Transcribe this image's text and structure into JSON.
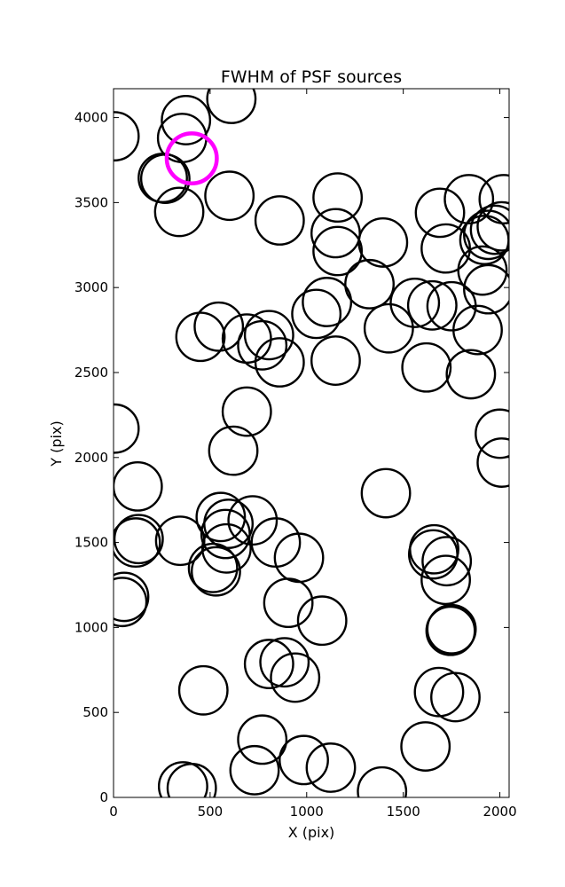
{
  "chart_data": {
    "type": "scatter",
    "title": "FWHM of PSF sources",
    "xlabel": "X (pix)",
    "ylabel": "Y (pix)",
    "xlim": [
      0,
      2048
    ],
    "ylim": [
      0,
      4170
    ],
    "xticks": [
      "0",
      "500",
      "1000",
      "1500",
      "2000"
    ],
    "yticks": [
      "0",
      "500",
      "1000",
      "1500",
      "2000",
      "2500",
      "3000",
      "3500",
      "4000"
    ],
    "grid": false,
    "legend": "none",
    "marker": "open circle",
    "marker_radius_data_x": 125,
    "colors": {
      "sources": "#000000",
      "highlight": "#ff00ff"
    },
    "highlight": {
      "x": 405,
      "y": 3760
    },
    "series": [
      {
        "points": [
          [
            5,
            3890
          ],
          [
            375,
            3985
          ],
          [
            610,
            4110
          ],
          [
            355,
            3880
          ],
          [
            255,
            3645
          ],
          [
            268,
            3640
          ],
          [
            340,
            3445
          ],
          [
            600,
            3540
          ],
          [
            860,
            3395
          ],
          [
            1160,
            3530
          ],
          [
            1150,
            3320
          ],
          [
            1160,
            3215
          ],
          [
            1395,
            3265
          ],
          [
            1325,
            3020
          ],
          [
            1105,
            2915
          ],
          [
            1050,
            2845
          ],
          [
            1425,
            2760
          ],
          [
            1560,
            2910
          ],
          [
            1650,
            2895
          ],
          [
            1750,
            2890
          ],
          [
            1885,
            2750
          ],
          [
            1620,
            2530
          ],
          [
            1850,
            2490
          ],
          [
            1690,
            3440
          ],
          [
            1720,
            3230
          ],
          [
            1840,
            3520
          ],
          [
            1920,
            3280
          ],
          [
            1940,
            3310
          ],
          [
            1975,
            3340
          ],
          [
            2010,
            3360
          ],
          [
            2020,
            3520
          ],
          [
            1910,
            3100
          ],
          [
            1940,
            2990
          ],
          [
            2000,
            2140
          ],
          [
            2010,
            1970
          ],
          [
            5,
            2170
          ],
          [
            125,
            1830
          ],
          [
            690,
            2270
          ],
          [
            620,
            2040
          ],
          [
            450,
            2710
          ],
          [
            545,
            2770
          ],
          [
            690,
            2700
          ],
          [
            805,
            2720
          ],
          [
            770,
            2660
          ],
          [
            860,
            2560
          ],
          [
            1150,
            2570
          ],
          [
            1410,
            1790
          ],
          [
            130,
            1520
          ],
          [
            115,
            1500
          ],
          [
            345,
            1510
          ],
          [
            555,
            1650
          ],
          [
            595,
            1610
          ],
          [
            720,
            1630
          ],
          [
            580,
            1550
          ],
          [
            585,
            1465
          ],
          [
            515,
            1350
          ],
          [
            530,
            1330
          ],
          [
            840,
            1500
          ],
          [
            960,
            1410
          ],
          [
            55,
            1180
          ],
          [
            45,
            1150
          ],
          [
            905,
            1145
          ],
          [
            1080,
            1040
          ],
          [
            1660,
            1460
          ],
          [
            1655,
            1430
          ],
          [
            1725,
            1390
          ],
          [
            1720,
            1280
          ],
          [
            1750,
            990
          ],
          [
            1745,
            980
          ],
          [
            465,
            630
          ],
          [
            805,
            785
          ],
          [
            885,
            795
          ],
          [
            940,
            705
          ],
          [
            770,
            340
          ],
          [
            730,
            160
          ],
          [
            985,
            220
          ],
          [
            1125,
            175
          ],
          [
            360,
            65
          ],
          [
            405,
            55
          ],
          [
            1390,
            35
          ],
          [
            1615,
            300
          ],
          [
            1685,
            620
          ],
          [
            1770,
            590
          ]
        ]
      }
    ]
  }
}
